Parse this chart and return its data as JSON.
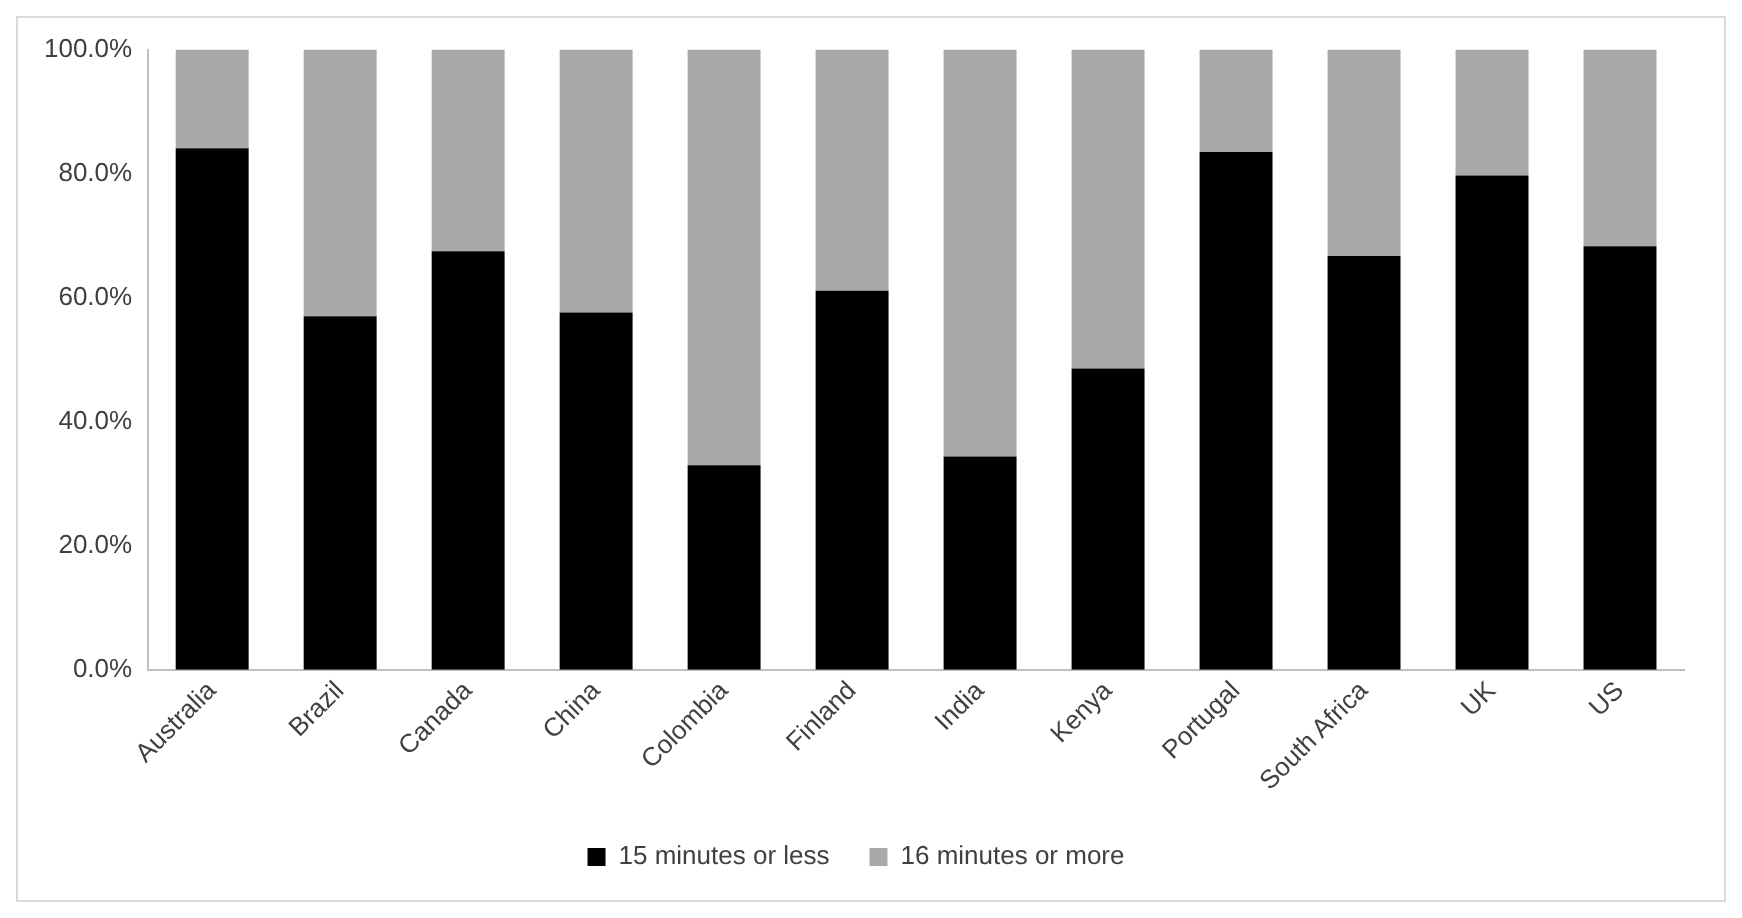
{
  "chart_data": {
    "type": "bar",
    "stacked": true,
    "categories": [
      "Australia",
      "Brazil",
      "Canada",
      "China",
      "Colombia",
      "Finland",
      "India",
      "Kenya",
      "Portugal",
      "South Africa",
      "UK",
      "US"
    ],
    "series": [
      {
        "name": "15 minutes or less",
        "color": "#000000",
        "values": [
          84.1,
          57.0,
          67.5,
          57.6,
          33.0,
          61.1,
          34.4,
          48.6,
          83.5,
          66.7,
          79.7,
          68.3
        ]
      },
      {
        "name": "16 minutes or more",
        "color": "#a9a9a9",
        "values": [
          15.9,
          43.0,
          32.5,
          42.4,
          67.0,
          38.9,
          65.6,
          51.4,
          16.5,
          33.3,
          20.3,
          31.7
        ]
      }
    ],
    "ylim": [
      0,
      100
    ],
    "yticks": [
      {
        "value": 0,
        "label": "0.0%"
      },
      {
        "value": 20,
        "label": "20.0%"
      },
      {
        "value": 40,
        "label": "40.0%"
      },
      {
        "value": 60,
        "label": "60.0%"
      },
      {
        "value": 80,
        "label": "80.0%"
      },
      {
        "value": 100,
        "label": "100.0%"
      }
    ],
    "grid": false,
    "legend": "bottom"
  }
}
